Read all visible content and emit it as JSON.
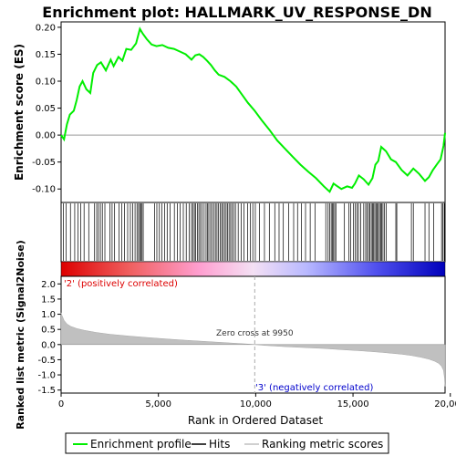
{
  "chart_data": {
    "type": "line",
    "title": "Enrichment plot: HALLMARK_UV_RESPONSE_DN",
    "x_label": "Rank in Ordered Dataset",
    "es_panel": {
      "ylabel": "Enrichment score (ES)",
      "ylim": [
        -0.125,
        0.21
      ],
      "yticks": [
        "0.20",
        "0.15",
        "0.10",
        "0.05",
        "0.00",
        "-0.05",
        "-0.10"
      ],
      "ytick_values": [
        0.2,
        0.15,
        0.1,
        0.05,
        0.0,
        -0.05,
        -0.1
      ],
      "series": [
        {
          "name": "Enrichment profile",
          "color": "#00ee00",
          "x": [
            0,
            150,
            300,
            450,
            650,
            800,
            950,
            1100,
            1300,
            1500,
            1650,
            1850,
            2050,
            2300,
            2550,
            2700,
            2950,
            3150,
            3350,
            3600,
            3850,
            4050,
            4200,
            4400,
            4650,
            4900,
            5200,
            5500,
            5800,
            6100,
            6400,
            6700,
            6900,
            7100,
            7300,
            7500,
            7700,
            7900,
            8100,
            8400,
            8700,
            9000,
            9300,
            9600,
            9950,
            10300,
            10700,
            11100,
            11500,
            11900,
            12300,
            12700,
            13100,
            13500,
            13800,
            14000,
            14200,
            14400,
            14700,
            14950,
            15100,
            15300,
            15550,
            15800,
            16000,
            16150,
            16300,
            16450,
            16700,
            16950,
            17200,
            17500,
            17800,
            18100,
            18400,
            18700,
            18900,
            19100,
            19300,
            19500,
            19650,
            19730
          ],
          "y": [
            0.0,
            -0.008,
            0.02,
            0.038,
            0.045,
            0.065,
            0.09,
            0.1,
            0.085,
            0.078,
            0.115,
            0.13,
            0.135,
            0.12,
            0.14,
            0.128,
            0.145,
            0.138,
            0.16,
            0.158,
            0.17,
            0.197,
            0.188,
            0.178,
            0.168,
            0.165,
            0.167,
            0.162,
            0.16,
            0.155,
            0.15,
            0.14,
            0.148,
            0.15,
            0.145,
            0.138,
            0.13,
            0.12,
            0.112,
            0.108,
            0.1,
            0.09,
            0.075,
            0.06,
            0.045,
            0.028,
            0.01,
            -0.01,
            -0.025,
            -0.04,
            -0.055,
            -0.068,
            -0.08,
            -0.095,
            -0.105,
            -0.09,
            -0.095,
            -0.1,
            -0.095,
            -0.098,
            -0.09,
            -0.075,
            -0.082,
            -0.092,
            -0.08,
            -0.055,
            -0.048,
            -0.022,
            -0.03,
            -0.045,
            -0.05,
            -0.065,
            -0.075,
            -0.062,
            -0.072,
            -0.085,
            -0.078,
            -0.065,
            -0.055,
            -0.045,
            -0.02,
            0.004
          ]
        }
      ]
    },
    "hits_panel": {
      "legend_name": "Hits",
      "hit_positions": [
        120,
        260,
        480,
        700,
        870,
        1010,
        1180,
        1420,
        1720,
        1830,
        1920,
        2020,
        2120,
        2250,
        2510,
        2620,
        2750,
        2980,
        3120,
        3260,
        3420,
        3560,
        3680,
        3800,
        3900,
        3980,
        4040,
        4100,
        4160,
        4220,
        4800,
        4920,
        5050,
        5180,
        5320,
        5450,
        5600,
        5820,
        5980,
        6120,
        6280,
        6430,
        6580,
        6700,
        6780,
        6850,
        6920,
        7000,
        7080,
        7160,
        7250,
        7350,
        7450,
        7520,
        7590,
        7680,
        7760,
        7850,
        7930,
        8010,
        8090,
        8170,
        8250,
        8320,
        8400,
        8480,
        8550,
        8630,
        8710,
        8790,
        8870,
        8960,
        9100,
        9250,
        9400,
        9580,
        9720,
        9850,
        9980,
        10200,
        10450,
        10700,
        10980,
        11200,
        11420,
        11700,
        11950,
        12150,
        12350,
        12560,
        12800,
        13050,
        13600,
        13720,
        13800,
        13880,
        13940,
        14000,
        14060,
        14120,
        14560,
        14780,
        14880,
        15020,
        15120,
        15200,
        15280,
        15400,
        15550,
        15650,
        15720,
        15800,
        15870,
        15940,
        16000,
        16060,
        16120,
        16180,
        16240,
        16300,
        16360,
        16420,
        16480,
        16540,
        16620,
        16700,
        17200,
        17250,
        18000,
        18100,
        18700,
        18900,
        19150,
        19550,
        19620,
        19690
      ]
    },
    "metric_panel": {
      "ylabel": "Ranked list metric (Signal2Noise)",
      "ylim": [
        -1.6,
        2.25
      ],
      "yticks": [
        "2.0",
        "1.5",
        "1.0",
        "0.5",
        "0.0",
        "-0.5",
        "-1.0",
        "-1.5"
      ],
      "ytick_values": [
        2.0,
        1.5,
        1.0,
        0.5,
        0.0,
        -0.5,
        -1.0,
        -1.5
      ],
      "legend_name": "Ranking metric scores",
      "color": "#c0c0c0",
      "x": [
        0,
        50,
        150,
        300,
        500,
        800,
        1200,
        1800,
        2500,
        3500,
        4500,
        5500,
        6500,
        7500,
        8500,
        9500,
        9950,
        10500,
        11500,
        12500,
        13500,
        14500,
        15500,
        16500,
        17500,
        18000,
        18500,
        18900,
        19200,
        19400,
        19550,
        19650,
        19700,
        19730
      ],
      "y": [
        1.05,
        0.95,
        0.8,
        0.68,
        0.6,
        0.53,
        0.47,
        0.4,
        0.34,
        0.28,
        0.23,
        0.18,
        0.14,
        0.1,
        0.06,
        0.02,
        0.0,
        -0.03,
        -0.07,
        -0.1,
        -0.13,
        -0.17,
        -0.21,
        -0.26,
        -0.32,
        -0.36,
        -0.42,
        -0.48,
        -0.55,
        -0.62,
        -0.72,
        -0.85,
        -1.1,
        -1.38
      ],
      "zero_cross_label": "Zero cross at 9950",
      "zero_cross_x": 9950,
      "pos_label": "'2' (positively correlated)",
      "neg_label": "'3' (negatively correlated)",
      "pos_color": "#dd0000",
      "neg_color": "#0000cc"
    },
    "x_axis": {
      "xlim": [
        0,
        19730
      ],
      "xticks": [
        "0",
        "5,000",
        "10,000",
        "15,000",
        "20,000"
      ],
      "xtick_values": [
        0,
        5000,
        10000,
        15000,
        20000
      ]
    },
    "legend": {
      "items": [
        "Enrichment profile",
        "Hits",
        "Ranking metric scores"
      ],
      "placement": "bottom"
    }
  }
}
